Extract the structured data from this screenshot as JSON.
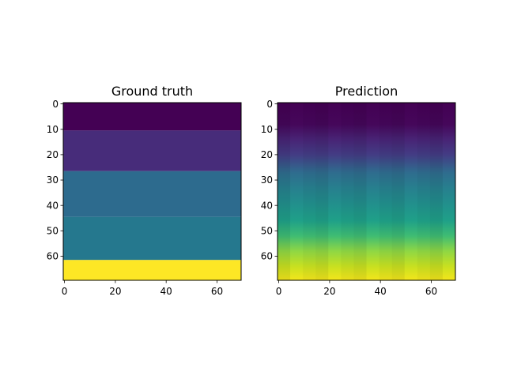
{
  "figure": {
    "background": "#ffffff"
  },
  "chart_data": [
    {
      "type": "heatmap",
      "title": "Ground truth",
      "colormap": "viridis",
      "xlim": [
        0,
        69
      ],
      "ylim": [
        69,
        0
      ],
      "xticks": [
        "0",
        "20",
        "40",
        "60"
      ],
      "yticks": [
        "0",
        "10",
        "20",
        "30",
        "40",
        "50",
        "60"
      ],
      "layers": [
        {
          "y_from": 0,
          "y_to": 10.5,
          "value": 0.0,
          "color": "#440154"
        },
        {
          "y_from": 10.5,
          "y_to": 26.5,
          "value": 0.11,
          "color": "#472c7a"
        },
        {
          "y_from": 26.5,
          "y_to": 44.5,
          "value": 0.35,
          "color": "#2d6b8e"
        },
        {
          "y_from": 44.5,
          "y_to": 61.5,
          "value": 0.42,
          "color": "#25788e"
        },
        {
          "y_from": 61.5,
          "y_to": 69.5,
          "value": 1.0,
          "color": "#fde725"
        }
      ]
    },
    {
      "type": "heatmap",
      "title": "Prediction",
      "colormap": "viridis",
      "xlim": [
        0,
        69
      ],
      "ylim": [
        69,
        0
      ],
      "xticks": [
        "0",
        "20",
        "40",
        "60"
      ],
      "yticks": [
        "0",
        "10",
        "20",
        "30",
        "40",
        "50",
        "60"
      ],
      "depth_profile": [
        {
          "y": 0,
          "value": 0.0,
          "color": "#440154"
        },
        {
          "y": 8,
          "value": 0.02,
          "color": "#45075a"
        },
        {
          "y": 14,
          "value": 0.1,
          "color": "#482475"
        },
        {
          "y": 20,
          "value": 0.2,
          "color": "#433c84"
        },
        {
          "y": 27,
          "value": 0.35,
          "color": "#2f6c8e"
        },
        {
          "y": 33,
          "value": 0.42,
          "color": "#277f8e"
        },
        {
          "y": 40,
          "value": 0.48,
          "color": "#21918c"
        },
        {
          "y": 46,
          "value": 0.52,
          "color": "#1fa088"
        },
        {
          "y": 52,
          "value": 0.68,
          "color": "#3fbc73"
        },
        {
          "y": 58,
          "value": 0.8,
          "color": "#8fd744"
        },
        {
          "y": 64,
          "value": 0.9,
          "color": "#c8e020"
        },
        {
          "y": 69,
          "value": 0.97,
          "color": "#f0e51c"
        }
      ]
    }
  ]
}
